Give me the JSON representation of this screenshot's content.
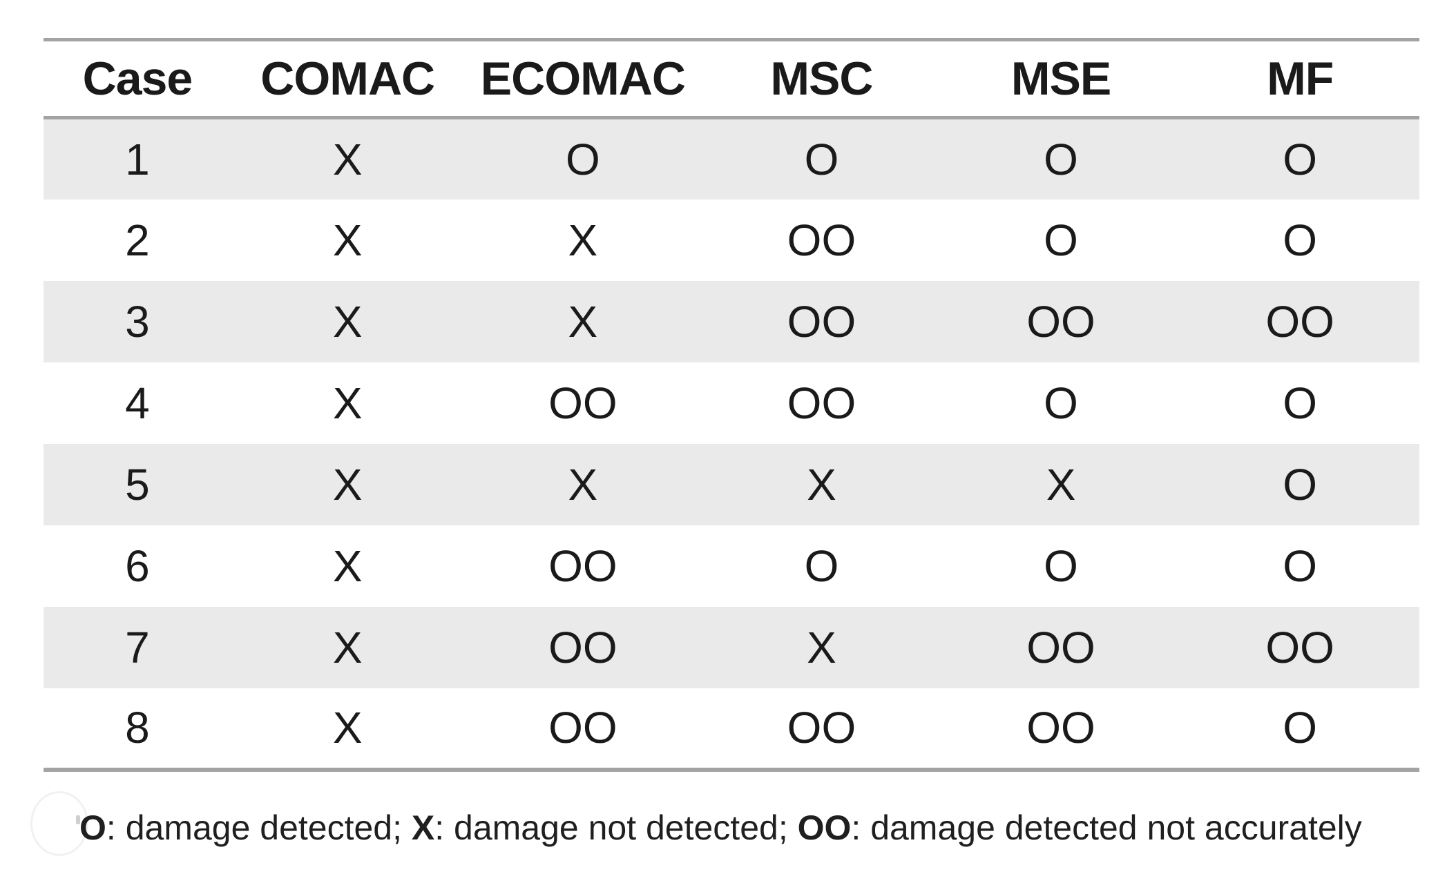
{
  "table": {
    "columns": [
      "Case",
      "COMAC",
      "ECOMAC",
      "MSC",
      "MSE",
      "MF"
    ],
    "rows": [
      {
        "case": "1",
        "values": [
          "X",
          "O",
          "O",
          "O",
          "O"
        ]
      },
      {
        "case": "2",
        "values": [
          "X",
          "X",
          "OO",
          "O",
          "O"
        ]
      },
      {
        "case": "3",
        "values": [
          "X",
          "X",
          "OO",
          "OO",
          "OO"
        ]
      },
      {
        "case": "4",
        "values": [
          "X",
          "OO",
          "OO",
          "O",
          "O"
        ]
      },
      {
        "case": "5",
        "values": [
          "X",
          "X",
          "X",
          "X",
          "O"
        ]
      },
      {
        "case": "6",
        "values": [
          "X",
          "OO",
          "O",
          "O",
          "O"
        ]
      },
      {
        "case": "7",
        "values": [
          "X",
          "OO",
          "X",
          "OO",
          "OO"
        ]
      },
      {
        "case": "8",
        "values": [
          "X",
          "OO",
          "OO",
          "OO",
          "O"
        ]
      }
    ]
  },
  "legend": {
    "segments": [
      {
        "text": "O",
        "bold": true
      },
      {
        "text": ": damage detected; ",
        "bold": false
      },
      {
        "text": "X",
        "bold": true
      },
      {
        "text": ": damage not detected; ",
        "bold": false
      },
      {
        "text": "OO",
        "bold": true
      },
      {
        "text": ": damage detected not accurately",
        "bold": false
      }
    ]
  },
  "colors": {
    "row_shade": "#eaeaea",
    "border": "#a3a3a3",
    "text": "#1a1a1a"
  }
}
